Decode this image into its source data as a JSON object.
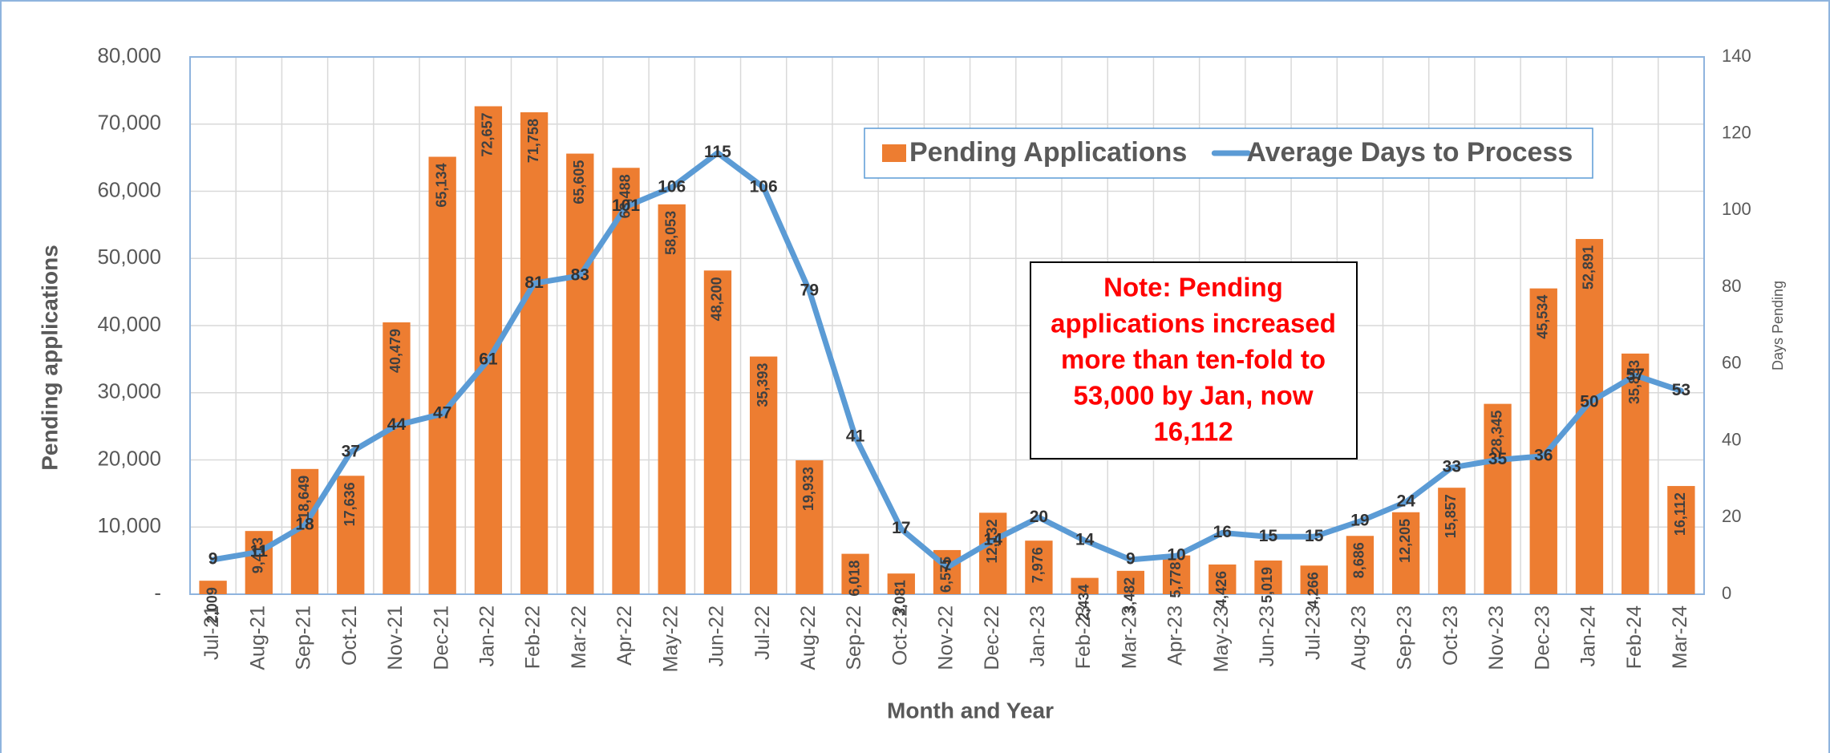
{
  "chart_data": {
    "type": "bar_line",
    "y_label": "Pending applications",
    "y2_label": "Days Pending",
    "x_label": "Month and Year",
    "categories": [
      "Jul-21",
      "Aug-21",
      "Sep-21",
      "Oct-21",
      "Nov-21",
      "Dec-21",
      "Jan-22",
      "Feb-22",
      "Mar-22",
      "Apr-22",
      "May-22",
      "Jun-22",
      "Jul-22",
      "Aug-22",
      "Sep-22",
      "Oct-22",
      "Nov-22",
      "Dec-22",
      "Jan-23",
      "Feb-23",
      "Mar-23",
      "Apr-23",
      "May-23",
      "Jun-23",
      "Jul-23",
      "Aug-23",
      "Sep-23",
      "Oct-23",
      "Nov-23",
      "Dec-23",
      "Jan-24",
      "Feb-24",
      "Mar-24"
    ],
    "series": [
      {
        "name": "Pending Applications",
        "type": "bar",
        "color": "#ed7d31",
        "values": [
          2009,
          9413,
          18649,
          17636,
          40479,
          65134,
          72657,
          71758,
          65605,
          63488,
          58053,
          48200,
          35393,
          19933,
          6018,
          3081,
          6575,
          12132,
          7976,
          2434,
          3482,
          5778,
          4426,
          5019,
          4266,
          8686,
          12205,
          15857,
          28345,
          45534,
          52891,
          35833,
          16112
        ],
        "value_labels": [
          "2,009",
          "9,413",
          "18,649",
          "17,636",
          "40,479",
          "65,134",
          "72,657",
          "71,758",
          "65,605",
          "63,488",
          "58,053",
          "48,200",
          "35,393",
          "19,933",
          "6,018",
          "3,081",
          "6,575",
          "12,132",
          "7,976",
          "2,434",
          "3,482",
          "5,778",
          "4,426",
          "5,019",
          "4,266",
          "8,686",
          "12,205",
          "15,857",
          "28,345",
          "45,534",
          "52,891",
          "35,833",
          "16,112"
        ]
      },
      {
        "name": "Average Days to Process",
        "type": "line",
        "axis": "y2",
        "color": "#5b9bd5",
        "values": [
          9,
          11,
          18,
          37,
          44,
          47,
          61,
          81,
          83,
          101,
          106,
          115,
          106,
          79,
          41,
          17,
          7,
          14,
          20,
          14,
          9,
          10,
          16,
          15,
          15,
          19,
          24,
          33,
          35,
          36,
          50,
          57,
          53
        ]
      }
    ],
    "ylim": [
      0,
      80000
    ],
    "yticks": [
      {
        "value": 0,
        "label": "-"
      },
      {
        "value": 10000,
        "label": "10,000"
      },
      {
        "value": 20000,
        "label": "20,000"
      },
      {
        "value": 30000,
        "label": "30,000"
      },
      {
        "value": 40000,
        "label": "40,000"
      },
      {
        "value": 50000,
        "label": "50,000"
      },
      {
        "value": 60000,
        "label": "60,000"
      },
      {
        "value": 70000,
        "label": "70,000"
      },
      {
        "value": 80000,
        "label": "80,000"
      }
    ],
    "y2lim": [
      0,
      140
    ],
    "y2ticks": [
      0,
      20,
      40,
      60,
      80,
      100,
      120,
      140
    ],
    "grid": true,
    "legend": "top-right",
    "annotation": {
      "lines": [
        "Note: Pending",
        "applications increased",
        "more than ten-fold to",
        "53,000 by Jan, now",
        "16,112"
      ],
      "color": "#ff0000"
    }
  }
}
